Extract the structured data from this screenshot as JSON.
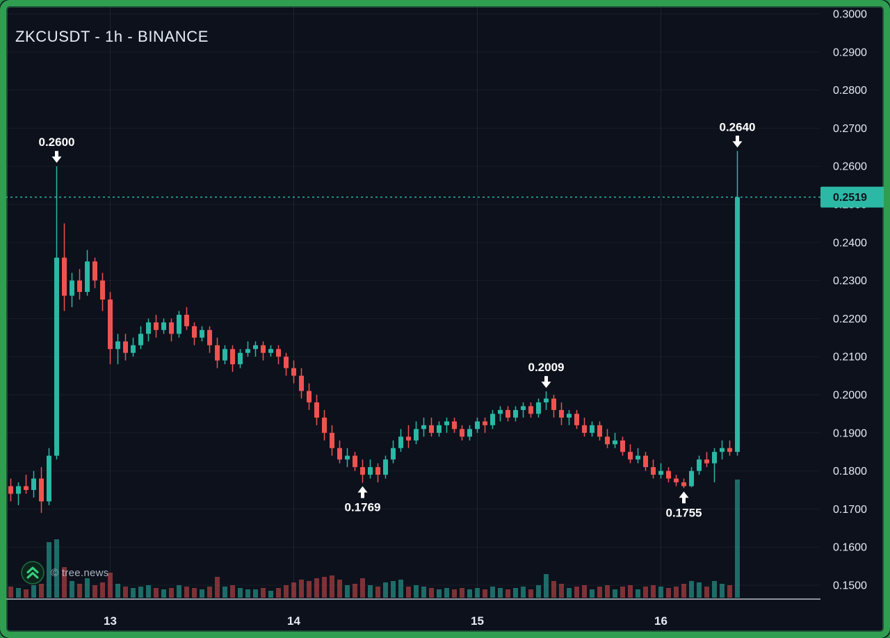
{
  "meta": {
    "title": "ZKCUSDT - 1h - BINANCE"
  },
  "watermark": {
    "text": "© tree.news"
  },
  "colors": {
    "background": "#0c111c",
    "frame_green": "#2f9e50",
    "up": "#2bb8a5",
    "down": "#ef5350",
    "volume_up": "rgba(43,184,165,0.55)",
    "volume_down": "rgba(239,83,80,0.5)",
    "price_line": "#2bb8a5",
    "price_tag_bg": "#2bb8a5",
    "price_tag_text": "#0c111c",
    "axis_text": "#e6ebf2",
    "annotation_text": "#ffffff",
    "axis_line": "#cdd3dc",
    "grid": "rgba(255,255,255,0.05)",
    "grid_vertical": "rgba(255,255,255,0.08)"
  },
  "chart_data": {
    "type": "candlestick",
    "symbol": "ZKCUSDT",
    "interval": "1h",
    "exchange": "BINANCE",
    "title": "ZKCUSDT - 1h - BINANCE",
    "price_axis": {
      "tick_labels": [
        "0.3000",
        "0.2900",
        "0.2800",
        "0.2700",
        "0.2600",
        "0.2500",
        "0.2400",
        "0.2300",
        "0.2200",
        "0.2100",
        "0.2000",
        "0.1900",
        "0.1800",
        "0.1700",
        "0.1600",
        "0.1500"
      ],
      "visible_range": [
        0.15,
        0.3
      ],
      "current_price": 0.2519,
      "current_price_label": "0.2519"
    },
    "time_axis": {
      "ticks": [
        {
          "label": "13",
          "candle": 13
        },
        {
          "label": "14",
          "candle": 37
        },
        {
          "label": "15",
          "candle": 61
        },
        {
          "label": "16",
          "candle": 85
        }
      ]
    },
    "candle_format": [
      "open",
      "high",
      "low",
      "close",
      "volume"
    ],
    "candles": [
      [
        0.176,
        0.178,
        0.172,
        0.174,
        8
      ],
      [
        0.174,
        0.177,
        0.171,
        0.176,
        7
      ],
      [
        0.176,
        0.179,
        0.174,
        0.175,
        6
      ],
      [
        0.175,
        0.18,
        0.173,
        0.178,
        9
      ],
      [
        0.178,
        0.181,
        0.169,
        0.172,
        10
      ],
      [
        0.172,
        0.186,
        0.171,
        0.184,
        40
      ],
      [
        0.184,
        0.26,
        0.183,
        0.236,
        42
      ],
      [
        0.236,
        0.245,
        0.222,
        0.226,
        22
      ],
      [
        0.226,
        0.232,
        0.223,
        0.23,
        12
      ],
      [
        0.23,
        0.233,
        0.225,
        0.227,
        10
      ],
      [
        0.227,
        0.238,
        0.226,
        0.235,
        14
      ],
      [
        0.235,
        0.236,
        0.228,
        0.23,
        9
      ],
      [
        0.23,
        0.232,
        0.222,
        0.225,
        11
      ],
      [
        0.225,
        0.227,
        0.208,
        0.212,
        18
      ],
      [
        0.212,
        0.216,
        0.208,
        0.214,
        10
      ],
      [
        0.214,
        0.216,
        0.209,
        0.211,
        8
      ],
      [
        0.211,
        0.215,
        0.21,
        0.213,
        7
      ],
      [
        0.213,
        0.218,
        0.212,
        0.216,
        8
      ],
      [
        0.216,
        0.22,
        0.214,
        0.219,
        9
      ],
      [
        0.219,
        0.221,
        0.215,
        0.217,
        7
      ],
      [
        0.217,
        0.22,
        0.216,
        0.219,
        6
      ],
      [
        0.219,
        0.22,
        0.214,
        0.216,
        7
      ],
      [
        0.216,
        0.222,
        0.215,
        0.221,
        9
      ],
      [
        0.221,
        0.223,
        0.217,
        0.218,
        8
      ],
      [
        0.218,
        0.219,
        0.213,
        0.215,
        7
      ],
      [
        0.215,
        0.218,
        0.214,
        0.217,
        6
      ],
      [
        0.217,
        0.218,
        0.211,
        0.213,
        8
      ],
      [
        0.213,
        0.215,
        0.207,
        0.209,
        15
      ],
      [
        0.209,
        0.213,
        0.208,
        0.212,
        8
      ],
      [
        0.212,
        0.213,
        0.206,
        0.208,
        9
      ],
      [
        0.208,
        0.212,
        0.207,
        0.211,
        7
      ],
      [
        0.211,
        0.214,
        0.21,
        0.212,
        6
      ],
      [
        0.212,
        0.214,
        0.21,
        0.213,
        6
      ],
      [
        0.213,
        0.214,
        0.209,
        0.211,
        7
      ],
      [
        0.211,
        0.213,
        0.21,
        0.212,
        5
      ],
      [
        0.212,
        0.213,
        0.208,
        0.21,
        7
      ],
      [
        0.21,
        0.211,
        0.205,
        0.207,
        9
      ],
      [
        0.207,
        0.209,
        0.203,
        0.205,
        11
      ],
      [
        0.205,
        0.207,
        0.199,
        0.201,
        13
      ],
      [
        0.201,
        0.203,
        0.196,
        0.198,
        12
      ],
      [
        0.198,
        0.2,
        0.192,
        0.194,
        14
      ],
      [
        0.194,
        0.196,
        0.188,
        0.19,
        15
      ],
      [
        0.19,
        0.192,
        0.184,
        0.186,
        16
      ],
      [
        0.186,
        0.188,
        0.182,
        0.183,
        13
      ],
      [
        0.183,
        0.186,
        0.181,
        0.184,
        9
      ],
      [
        0.184,
        0.185,
        0.18,
        0.181,
        10
      ],
      [
        0.181,
        0.183,
        0.1769,
        0.179,
        14
      ],
      [
        0.179,
        0.183,
        0.178,
        0.181,
        9
      ],
      [
        0.181,
        0.182,
        0.177,
        0.179,
        8
      ],
      [
        0.179,
        0.184,
        0.178,
        0.183,
        11
      ],
      [
        0.183,
        0.188,
        0.182,
        0.186,
        12
      ],
      [
        0.186,
        0.191,
        0.185,
        0.189,
        13
      ],
      [
        0.189,
        0.192,
        0.186,
        0.188,
        8
      ],
      [
        0.188,
        0.193,
        0.187,
        0.191,
        9
      ],
      [
        0.191,
        0.194,
        0.189,
        0.192,
        8
      ],
      [
        0.192,
        0.194,
        0.189,
        0.19,
        7
      ],
      [
        0.19,
        0.193,
        0.189,
        0.192,
        6
      ],
      [
        0.192,
        0.194,
        0.19,
        0.193,
        7
      ],
      [
        0.193,
        0.194,
        0.19,
        0.191,
        6
      ],
      [
        0.191,
        0.192,
        0.188,
        0.189,
        7
      ],
      [
        0.189,
        0.192,
        0.188,
        0.191,
        6
      ],
      [
        0.191,
        0.194,
        0.19,
        0.193,
        7
      ],
      [
        0.193,
        0.194,
        0.19,
        0.192,
        6
      ],
      [
        0.192,
        0.196,
        0.191,
        0.195,
        8
      ],
      [
        0.195,
        0.197,
        0.193,
        0.196,
        7
      ],
      [
        0.196,
        0.197,
        0.193,
        0.194,
        6
      ],
      [
        0.194,
        0.197,
        0.193,
        0.196,
        7
      ],
      [
        0.196,
        0.198,
        0.194,
        0.197,
        8
      ],
      [
        0.197,
        0.198,
        0.194,
        0.195,
        6
      ],
      [
        0.195,
        0.199,
        0.194,
        0.198,
        9
      ],
      [
        0.198,
        0.2009,
        0.196,
        0.199,
        17
      ],
      [
        0.199,
        0.2,
        0.194,
        0.196,
        12
      ],
      [
        0.196,
        0.198,
        0.192,
        0.194,
        10
      ],
      [
        0.194,
        0.196,
        0.192,
        0.195,
        7
      ],
      [
        0.195,
        0.196,
        0.191,
        0.192,
        8
      ],
      [
        0.192,
        0.194,
        0.189,
        0.19,
        9
      ],
      [
        0.19,
        0.193,
        0.189,
        0.192,
        6
      ],
      [
        0.192,
        0.193,
        0.188,
        0.189,
        8
      ],
      [
        0.189,
        0.191,
        0.186,
        0.187,
        9
      ],
      [
        0.187,
        0.19,
        0.186,
        0.188,
        6
      ],
      [
        0.188,
        0.189,
        0.184,
        0.185,
        8
      ],
      [
        0.185,
        0.187,
        0.182,
        0.183,
        9
      ],
      [
        0.183,
        0.186,
        0.182,
        0.184,
        6
      ],
      [
        0.184,
        0.185,
        0.18,
        0.181,
        8
      ],
      [
        0.181,
        0.183,
        0.178,
        0.179,
        9
      ],
      [
        0.179,
        0.182,
        0.178,
        0.18,
        8
      ],
      [
        0.18,
        0.181,
        0.177,
        0.178,
        7
      ],
      [
        0.178,
        0.179,
        0.176,
        0.177,
        8
      ],
      [
        0.177,
        0.178,
        0.1755,
        0.176,
        10
      ],
      [
        0.176,
        0.181,
        0.1757,
        0.18,
        12
      ],
      [
        0.18,
        0.184,
        0.179,
        0.183,
        11
      ],
      [
        0.183,
        0.185,
        0.181,
        0.182,
        8
      ],
      [
        0.182,
        0.186,
        0.177,
        0.185,
        12
      ],
      [
        0.185,
        0.188,
        0.183,
        0.186,
        10
      ],
      [
        0.186,
        0.188,
        0.184,
        0.185,
        9
      ],
      [
        0.185,
        0.264,
        0.184,
        0.2519,
        85
      ]
    ],
    "annotations": [
      {
        "candle": 6,
        "price": 0.26,
        "label": "0.2600",
        "direction": "down"
      },
      {
        "candle": 95,
        "price": 0.264,
        "label": "0.2640",
        "direction": "down"
      },
      {
        "candle": 70,
        "price": 0.2009,
        "label": "0.2009",
        "direction": "down"
      },
      {
        "candle": 46,
        "price": 0.1769,
        "label": "0.1769",
        "direction": "up"
      },
      {
        "candle": 88,
        "price": 0.1755,
        "label": "0.1755",
        "direction": "up"
      }
    ]
  }
}
